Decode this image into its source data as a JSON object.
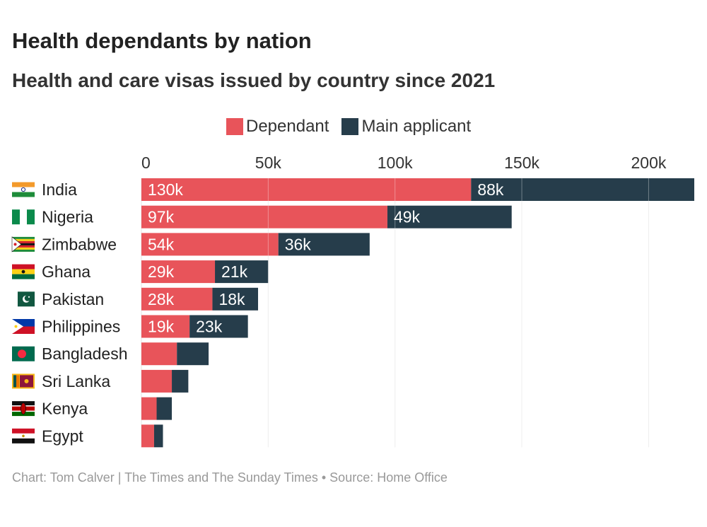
{
  "header": {
    "title": "Health dependants by nation",
    "subtitle": "Health and care visas issued by country since 2021"
  },
  "legend": {
    "dependant_label": "Dependant",
    "main_label": "Main applicant"
  },
  "colors": {
    "dependant": "#e8545a",
    "main": "#263d4b",
    "text_light": "#ffffff"
  },
  "footer": {
    "credit": "Chart: Tom Calver | The Times and The Sunday Times • Source: Home Office"
  },
  "chart_data": {
    "type": "bar",
    "orientation": "horizontal",
    "stacked": true,
    "categories": [
      "India",
      "Nigeria",
      "Zimbabwe",
      "Ghana",
      "Pakistan",
      "Philippines",
      "Bangladesh",
      "Sri Lanka",
      "Kenya",
      "Egypt"
    ],
    "series": [
      {
        "name": "Dependant",
        "values": [
          130,
          97,
          54,
          29,
          28,
          19,
          14,
          12,
          6,
          5
        ],
        "labels": [
          "130k",
          "97k",
          "54k",
          "29k",
          "28k",
          "19k",
          "",
          "",
          "",
          ""
        ]
      },
      {
        "name": "Main applicant",
        "values": [
          88,
          49,
          36,
          21,
          18,
          23,
          12.5,
          6.5,
          6,
          3.5
        ],
        "labels": [
          "88k",
          "49k",
          "36k",
          "21k",
          "18k",
          "23k",
          "",
          "",
          "",
          ""
        ]
      }
    ],
    "xlim": [
      0,
      218
    ],
    "xticks": [
      0,
      50,
      100,
      150,
      200
    ],
    "xtick_labels": [
      "0",
      "50k",
      "100k",
      "150k",
      "200k"
    ],
    "grid": true,
    "legend_position": "top-center",
    "axis_position": "top"
  }
}
